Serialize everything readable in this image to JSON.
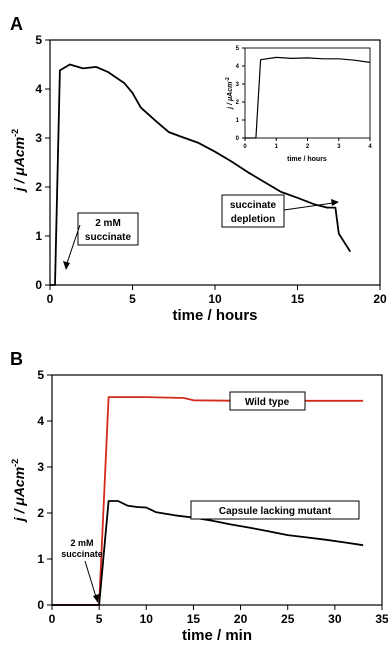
{
  "panel_a": {
    "letter": "A",
    "xlabel": "time / hours",
    "ylabel_main": "j / μAcm",
    "ylabel_exp": "-2",
    "xticks": [
      "0",
      "5",
      "10",
      "15",
      "20"
    ],
    "yticks": [
      "0",
      "1",
      "2",
      "3",
      "4",
      "5"
    ],
    "annotation_left_1": "2 mM",
    "annotation_left_2": "succinate",
    "annotation_right_1": "succinate",
    "annotation_right_2": "depletion",
    "inset": {
      "xlabel": "time / hours",
      "ylabel_main": "j / μAcm",
      "ylabel_exp": "-2",
      "xticks": [
        "0",
        "1",
        "2",
        "3",
        "4"
      ],
      "yticks": [
        "0",
        "1",
        "2",
        "3",
        "4",
        "5"
      ]
    }
  },
  "panel_b": {
    "letter": "B",
    "xlabel": "time / min",
    "ylabel_main": "j / μAcm",
    "ylabel_exp": "-2",
    "xticks": [
      "0",
      "5",
      "10",
      "15",
      "20",
      "25",
      "30",
      "35"
    ],
    "yticks": [
      "0",
      "1",
      "2",
      "3",
      "4",
      "5"
    ],
    "annotation_succ_1": "2 mM",
    "annotation_succ_2": "succinate",
    "legend_wild": "Wild type",
    "legend_mutant": "Capsule lacking mutant"
  },
  "chart_data": [
    {
      "type": "line",
      "xlabel": "time / hours",
      "ylabel": "j / μAcm-2",
      "xlim": [
        0,
        20
      ],
      "ylim": [
        0,
        5
      ],
      "series": [
        {
          "color": "#000000",
          "x": [
            0,
            0.3,
            0.6,
            1.2,
            2,
            2.8,
            3.5,
            4.5,
            5,
            5.5,
            6.5,
            7.2,
            8,
            9,
            10,
            11,
            12,
            13,
            14,
            15,
            16,
            16.8,
            17.3,
            17.5,
            18.2
          ],
          "y": [
            0,
            0,
            4.38,
            4.5,
            4.42,
            4.45,
            4.35,
            4.12,
            3.92,
            3.62,
            3.32,
            3.12,
            3.02,
            2.9,
            2.72,
            2.52,
            2.3,
            2.1,
            1.9,
            1.78,
            1.65,
            1.58,
            1.58,
            1.05,
            0.68
          ]
        }
      ],
      "inset": {
        "xlim": [
          0,
          4
        ],
        "ylim": [
          0,
          5
        ],
        "series": [
          {
            "color": "#000000",
            "x": [
              0,
              0.35,
              0.5,
              1,
              1.5,
              2,
              2.5,
              3,
              3.5,
              4
            ],
            "y": [
              0,
              0,
              4.35,
              4.48,
              4.42,
              4.45,
              4.4,
              4.4,
              4.32,
              4.2
            ]
          }
        ]
      }
    },
    {
      "type": "line",
      "xlabel": "time / min",
      "ylabel": "j / μAcm-2",
      "xlim": [
        0,
        35
      ],
      "ylim": [
        0,
        5
      ],
      "series": [
        {
          "name": "Wild type",
          "color": "#d42a1c",
          "x": [
            0,
            5,
            6,
            10,
            14,
            15,
            20,
            25,
            30,
            33
          ],
          "y": [
            0,
            0,
            4.52,
            4.52,
            4.5,
            4.45,
            4.44,
            4.44,
            4.44,
            4.44
          ]
        },
        {
          "name": "Capsule lacking mutant",
          "color": "#000000",
          "x": [
            0,
            5,
            6,
            7,
            8,
            9,
            10,
            11,
            13,
            15,
            17,
            19,
            21,
            23,
            25,
            27,
            29,
            31,
            33
          ],
          "y": [
            0,
            0,
            2.26,
            2.26,
            2.16,
            2.13,
            2.12,
            2.02,
            1.95,
            1.9,
            1.83,
            1.75,
            1.68,
            1.6,
            1.52,
            1.47,
            1.42,
            1.36,
            1.3
          ]
        }
      ]
    }
  ]
}
